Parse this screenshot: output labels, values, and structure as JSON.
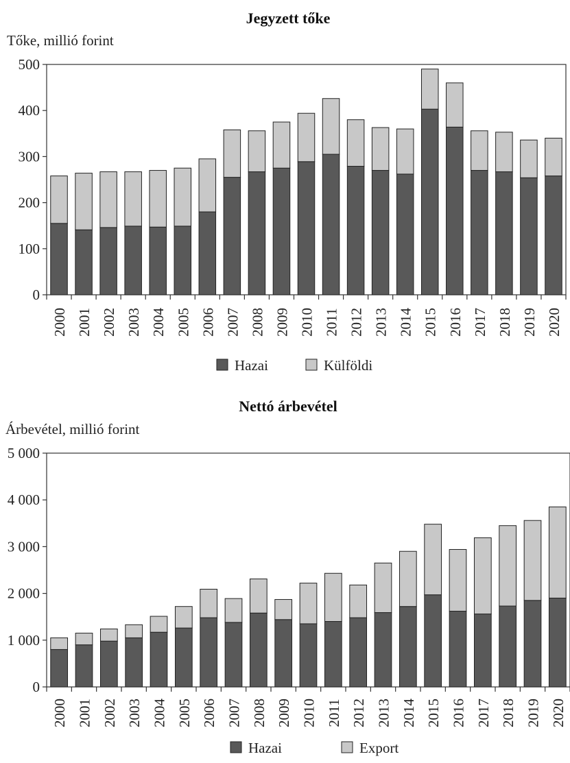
{
  "chart_data": [
    {
      "type": "bar",
      "stacked": true,
      "title": "Jegyzett tőke",
      "ylabel": "Tőke, millió forint",
      "xlabel": "",
      "ylim": [
        0,
        500
      ],
      "yticks": [
        "0",
        "100",
        "200",
        "300",
        "400",
        "500"
      ],
      "categories": [
        "2000",
        "2001",
        "2002",
        "2003",
        "2004",
        "2005",
        "2006",
        "2007",
        "2008",
        "2009",
        "2010",
        "2011",
        "2012",
        "2013",
        "2014",
        "2015",
        "2016",
        "2017",
        "2018",
        "2019",
        "2020"
      ],
      "series": [
        {
          "name": "Hazai",
          "color": "#595959",
          "values": [
            155,
            141,
            146,
            149,
            147,
            149,
            180,
            255,
            267,
            275,
            289,
            305,
            279,
            270,
            262,
            403,
            364,
            270,
            267,
            254,
            258
          ]
        },
        {
          "name": "Külföldi",
          "color": "#c8c8c8",
          "values": [
            103,
            123,
            121,
            118,
            123,
            126,
            115,
            103,
            89,
            100,
            105,
            121,
            101,
            93,
            98,
            87,
            96,
            86,
            86,
            82,
            82
          ]
        }
      ],
      "legend_position": "bottom",
      "grid": false
    },
    {
      "type": "bar",
      "stacked": true,
      "title": "Nettó árbevétel",
      "ylabel": "Árbevétel, millió forint",
      "xlabel": "",
      "ylim": [
        0,
        5000
      ],
      "yticks": [
        "0",
        "1 000",
        "2 000",
        "3 000",
        "4 000",
        "5 000"
      ],
      "categories": [
        "2000",
        "2001",
        "2002",
        "2003",
        "2004",
        "2005",
        "2006",
        "2007",
        "2008",
        "2009",
        "2010",
        "2011",
        "2012",
        "2013",
        "2014",
        "2015",
        "2016",
        "2017",
        "2018",
        "2019",
        "2020"
      ],
      "series": [
        {
          "name": "Hazai",
          "color": "#595959",
          "values": [
            800,
            900,
            980,
            1050,
            1170,
            1260,
            1480,
            1380,
            1580,
            1440,
            1350,
            1400,
            1480,
            1590,
            1720,
            1970,
            1620,
            1560,
            1730,
            1850,
            1900
          ]
        },
        {
          "name": "Export",
          "color": "#c8c8c8",
          "values": [
            250,
            250,
            260,
            280,
            340,
            460,
            610,
            510,
            730,
            430,
            870,
            1030,
            700,
            1060,
            1180,
            1510,
            1320,
            1630,
            1720,
            1710,
            1950
          ]
        }
      ],
      "legend_position": "bottom",
      "grid": false
    }
  ]
}
